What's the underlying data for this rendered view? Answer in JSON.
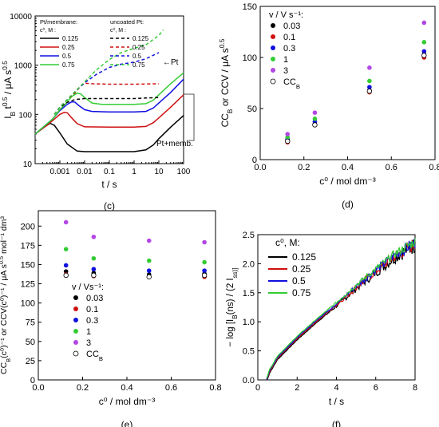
{
  "chart_data": [
    {
      "panel_label": "(c)",
      "type": "line",
      "xlabel": "t / s",
      "ylabel": "I_B t^0.5 / μA s^0.5",
      "xscale": "log",
      "yscale": "log",
      "xlim": [
        0.0001,
        100
      ],
      "ylim": [
        10,
        10000
      ],
      "x_ticks": [
        "0.001",
        "0.01",
        "0.1",
        "1",
        "10",
        "100"
      ],
      "y_ticks": [
        "10",
        "100",
        "1000",
        "10000"
      ],
      "legend_group_titles": [
        "Pt/membrane:",
        "uncoated Pt:"
      ],
      "legend_conc_header": "c⁰, M :",
      "annotations": [
        "←Pt",
        "Pt+memb."
      ],
      "series": [
        {
          "name": "0.125",
          "group": "membrane",
          "color": "#000000",
          "dash": false,
          "points": [
            [
              0.0001,
              40
            ],
            [
              0.0002,
              52
            ],
            [
              0.0004,
              66
            ],
            [
              0.0006,
              60
            ],
            [
              0.001,
              42
            ],
            [
              0.002,
              25
            ],
            [
              0.005,
              18
            ],
            [
              0.01,
              17.5
            ],
            [
              0.1,
              17.5
            ],
            [
              1,
              17.5
            ],
            [
              3,
              19
            ],
            [
              6,
              24
            ],
            [
              10,
              32
            ],
            [
              30,
              55
            ],
            [
              100,
              95
            ]
          ]
        },
        {
          "name": "0.25",
          "group": "membrane",
          "color": "#d01010",
          "dash": false,
          "points": [
            [
              0.0001,
              40
            ],
            [
              0.0003,
              60
            ],
            [
              0.0006,
              80
            ],
            [
              0.001,
              100
            ],
            [
              0.0015,
              110
            ],
            [
              0.002,
              108
            ],
            [
              0.003,
              85
            ],
            [
              0.005,
              65
            ],
            [
              0.01,
              56
            ],
            [
              0.1,
              55
            ],
            [
              1,
              55
            ],
            [
              3,
              57
            ],
            [
              6,
              68
            ],
            [
              10,
              85
            ],
            [
              30,
              140
            ],
            [
              100,
              250
            ]
          ]
        },
        {
          "name": "0.5",
          "group": "membrane",
          "color": "#1010e0",
          "dash": false,
          "points": [
            [
              0.0001,
              40
            ],
            [
              0.0005,
              80
            ],
            [
              0.001,
              120
            ],
            [
              0.002,
              160
            ],
            [
              0.003,
              180
            ],
            [
              0.004,
              178
            ],
            [
              0.006,
              150
            ],
            [
              0.01,
              125
            ],
            [
              0.02,
              115
            ],
            [
              0.1,
              112
            ],
            [
              1,
              112
            ],
            [
              3,
              115
            ],
            [
              6,
              135
            ],
            [
              10,
              170
            ],
            [
              30,
              280
            ],
            [
              100,
              520
            ]
          ]
        },
        {
          "name": "0.75",
          "group": "membrane",
          "color": "#33cc33",
          "dash": false,
          "points": [
            [
              0.0001,
              40
            ],
            [
              0.0005,
              80
            ],
            [
              0.001,
              125
            ],
            [
              0.002,
              180
            ],
            [
              0.003,
              230
            ],
            [
              0.005,
              270
            ],
            [
              0.007,
              260
            ],
            [
              0.01,
              220
            ],
            [
              0.02,
              170
            ],
            [
              0.05,
              160
            ],
            [
              0.1,
              160
            ],
            [
              1,
              160
            ],
            [
              3,
              165
            ],
            [
              6,
              195
            ],
            [
              10,
              250
            ],
            [
              30,
              420
            ],
            [
              100,
              700
            ]
          ]
        },
        {
          "name": "0.125",
          "group": "uncoated",
          "color": "#000000",
          "dash": true,
          "points": [
            [
              0.0006,
              100
            ],
            [
              0.001,
              140
            ],
            [
              0.002,
              175
            ],
            [
              0.004,
              200
            ],
            [
              0.01,
              210
            ],
            [
              0.1,
              210
            ],
            [
              1,
              210
            ],
            [
              3,
              215
            ],
            [
              10,
              220
            ]
          ]
        },
        {
          "name": "0.25",
          "group": "uncoated",
          "color": "#d01010",
          "dash": true,
          "points": [
            [
              0.0006,
              100
            ],
            [
              0.001,
              140
            ],
            [
              0.002,
              200
            ],
            [
              0.004,
              270
            ],
            [
              0.007,
              380
            ],
            [
              0.01,
              430
            ],
            [
              0.02,
              420
            ],
            [
              0.1,
              410
            ],
            [
              1,
              410
            ],
            [
              10,
              420
            ]
          ]
        },
        {
          "name": "0.5",
          "group": "uncoated",
          "color": "#1010e0",
          "dash": true,
          "points": [
            [
              0.0006,
              100
            ],
            [
              0.001,
              140
            ],
            [
              0.002,
              200
            ],
            [
              0.005,
              320
            ],
            [
              0.01,
              440
            ],
            [
              0.03,
              650
            ],
            [
              0.1,
              900
            ],
            [
              0.3,
              1050
            ],
            [
              1,
              1150
            ],
            [
              3,
              1350
            ],
            [
              10,
              1800
            ]
          ]
        },
        {
          "name": "0.75",
          "group": "uncoated",
          "color": "#33cc33",
          "dash": true,
          "points": [
            [
              0.0006,
              100
            ],
            [
              0.001,
              140
            ],
            [
              0.002,
              200
            ],
            [
              0.005,
              320
            ],
            [
              0.01,
              460
            ],
            [
              0.03,
              800
            ],
            [
              0.1,
              1300
            ],
            [
              0.3,
              1800
            ],
            [
              1,
              2200
            ],
            [
              3,
              2600
            ],
            [
              10,
              4000
            ],
            [
              15,
              5200
            ]
          ]
        }
      ]
    },
    {
      "panel_label": "(d)",
      "type": "scatter",
      "xlabel": "c⁰ / mol dm⁻³",
      "ylabel": "CC_B or CCV / μA s^0.5",
      "xlim": [
        0,
        0.8
      ],
      "ylim": [
        0,
        150
      ],
      "x_ticks": [
        "0.0",
        "0.2",
        "0.4",
        "0.6",
        "0.8"
      ],
      "y_ticks": [
        "0",
        "50",
        "100",
        "150"
      ],
      "legend_title": "v / V s⁻¹:",
      "x": [
        0.125,
        0.25,
        0.5,
        0.75
      ],
      "series": [
        {
          "name": "0.03",
          "color": "#000000",
          "hollow": false,
          "values": [
            19,
            35,
            68,
            103
          ]
        },
        {
          "name": "0.1",
          "color": "#d01010",
          "hollow": false,
          "values": [
            17,
            34,
            66,
            100
          ]
        },
        {
          "name": "0.3",
          "color": "#1010e0",
          "hollow": false,
          "values": [
            20,
            37,
            71,
            106
          ]
        },
        {
          "name": "1",
          "color": "#33cc33",
          "hollow": false,
          "values": [
            22,
            40,
            77,
            115
          ]
        },
        {
          "name": "3",
          "color": "#b347e6",
          "hollow": false,
          "values": [
            25,
            46,
            90,
            134
          ]
        },
        {
          "name": "CC_B",
          "color": "#000000",
          "hollow": true,
          "values": [
            18,
            34,
            67,
            102
          ]
        }
      ]
    },
    {
      "panel_label": "(e)",
      "type": "scatter",
      "xlabel": "c⁰ / mol dm⁻³",
      "ylabel": "CC_B(c⁰)⁻¹ or CCV(c⁰)⁻¹ / μA s^0.5 mol⁻¹ dm³",
      "xlim": [
        0,
        0.8
      ],
      "ylim": [
        0,
        220
      ],
      "x_ticks": [
        "0.0",
        "0.2",
        "0.4",
        "0.6",
        "0.8"
      ],
      "y_ticks": [
        "0",
        "25",
        "50",
        "75",
        "100",
        "125",
        "150",
        "175",
        "200"
      ],
      "legend_title": "v / Vs⁻¹:",
      "x": [
        0.125,
        0.25,
        0.5,
        0.75
      ],
      "series": [
        {
          "name": "0.03",
          "color": "#000000",
          "hollow": false,
          "values": [
            141,
            139,
            137,
            138
          ]
        },
        {
          "name": "0.1",
          "color": "#d01010",
          "hollow": false,
          "values": [
            137,
            135,
            134,
            134
          ]
        },
        {
          "name": "0.3",
          "color": "#1010e0",
          "hollow": false,
          "values": [
            149,
            144,
            142,
            142
          ]
        },
        {
          "name": "1",
          "color": "#33cc33",
          "hollow": false,
          "values": [
            170,
            158,
            155,
            153
          ]
        },
        {
          "name": "3",
          "color": "#b347e6",
          "hollow": false,
          "values": [
            205,
            186,
            181,
            179
          ]
        },
        {
          "name": "CC_B",
          "color": "#000000",
          "hollow": true,
          "values": [
            136,
            136,
            134,
            136
          ]
        }
      ]
    },
    {
      "panel_label": "(f)",
      "type": "line",
      "xlabel": "t / s",
      "ylabel": "− log [I_B(ns) / (2 I_ss)]",
      "xlim": [
        0,
        8
      ],
      "ylim": [
        0,
        2.5
      ],
      "x_ticks": [
        "0",
        "2",
        "4",
        "6",
        "8"
      ],
      "y_ticks": [
        "0.0",
        "0.5",
        "1.0",
        "1.5",
        "2.0",
        "2.5"
      ],
      "legend_title": "c⁰, M:",
      "series": [
        {
          "name": "0.125",
          "color": "#000000",
          "noise": 0.13
        },
        {
          "name": "0.25",
          "color": "#d01010",
          "noise": 0.12
        },
        {
          "name": "0.5",
          "color": "#1010e0",
          "noise": 0.1
        },
        {
          "name": "0.75",
          "color": "#33cc33",
          "noise": 0.08
        }
      ],
      "base_curve": [
        [
          0.45,
          0
        ],
        [
          0.6,
          0.15
        ],
        [
          1,
          0.38
        ],
        [
          2,
          0.72
        ],
        [
          3,
          1.02
        ],
        [
          4,
          1.3
        ],
        [
          5,
          1.6
        ],
        [
          6,
          1.88
        ],
        [
          7,
          2.15
        ],
        [
          8,
          2.35
        ]
      ]
    }
  ]
}
